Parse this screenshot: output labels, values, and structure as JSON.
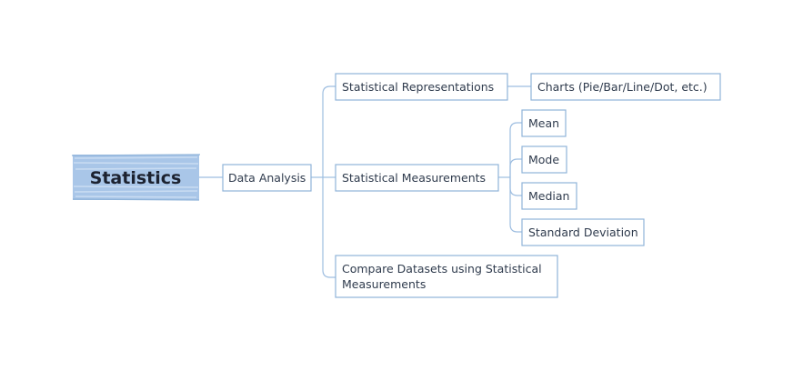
{
  "colors": {
    "root_fill": "#a9c6e8",
    "root_sketch": "#c9dcf2",
    "box_stroke": "#8fb3d9",
    "link_stroke": "#9dbde0",
    "text": "#2f3b4d"
  },
  "root": {
    "label": "Statistics"
  },
  "nodes": {
    "data_analysis": "Data Analysis",
    "statistical_representations": "Statistical Representations",
    "charts": "Charts (Pie/Bar/Line/Dot, etc.)",
    "statistical_measurements": "Statistical Measurements",
    "mean": "Mean",
    "mode": "Mode",
    "median": "Median",
    "standard_deviation": "Standard Deviation",
    "compare_line1": "Compare Datasets using Statistical",
    "compare_line2": "Measurements"
  }
}
